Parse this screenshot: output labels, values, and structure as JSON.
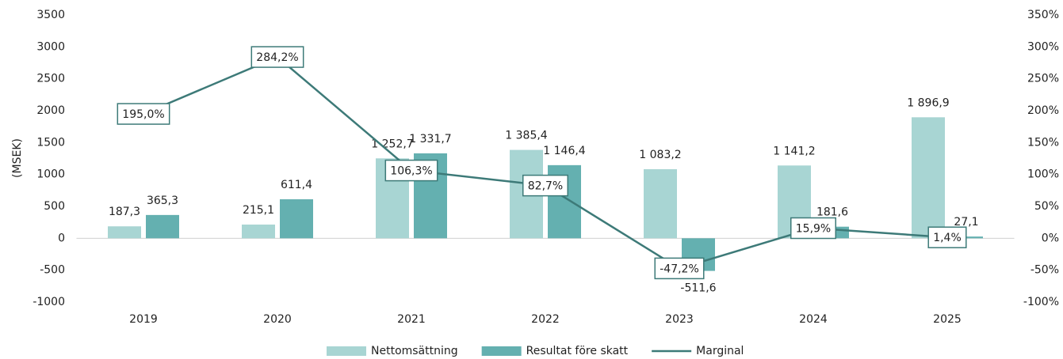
{
  "chart_data": {
    "type": "bar",
    "y_label": "(MSEK)",
    "categories": [
      "2019",
      "2020",
      "2021",
      "2022",
      "2023",
      "2024",
      "2025"
    ],
    "series": [
      {
        "name": "Nettomsättning",
        "color": "#a8d5d3",
        "values": [
          187.3,
          215.1,
          1252.7,
          1385.4,
          1083.2,
          1141.2,
          1896.9
        ],
        "value_labels": [
          "187,3",
          "215,1",
          "1 252,7",
          "1 385,4",
          "1 083,2",
          "1 141,2",
          "1 896,9"
        ]
      },
      {
        "name": "Resultat före skatt",
        "color": "#64b0b0",
        "values": [
          365.3,
          611.4,
          1331.7,
          1146.4,
          -511.6,
          181.6,
          27.1
        ],
        "value_labels": [
          "365,3",
          "611,4",
          "1 331,7",
          "1 146,4",
          "-511,6",
          "181,6",
          "27,1"
        ]
      },
      {
        "name": "Marginal",
        "color": "#3d7a78",
        "type": "line",
        "axis": "y2",
        "values": [
          195.0,
          284.2,
          106.3,
          82.7,
          -47.2,
          15.9,
          1.4
        ],
        "value_labels": [
          "195,0%",
          "284,2%",
          "106,3%",
          "82,7%",
          "-47,2%",
          "15,9%",
          "1,4%"
        ]
      }
    ],
    "ylim": [
      -1000,
      3500
    ],
    "yticks": [
      -1000,
      -500,
      0,
      500,
      1000,
      1500,
      2000,
      2500,
      3000,
      3500
    ],
    "y2lim": [
      -100,
      350
    ],
    "y2ticks": [
      {
        "value": -100,
        "label": "-100%"
      },
      {
        "value": -50,
        "label": "-50%"
      },
      {
        "value": 0,
        "label": "0%"
      },
      {
        "value": 50,
        "label": "50%"
      },
      {
        "value": 100,
        "label": "100%"
      },
      {
        "value": 150,
        "label": "150%"
      },
      {
        "value": 200,
        "label": "200%"
      },
      {
        "value": 250,
        "label": "250%"
      },
      {
        "value": 300,
        "label": "300%"
      },
      {
        "value": 350,
        "label": "350%"
      }
    ],
    "grid": false,
    "legend": "bottom"
  }
}
